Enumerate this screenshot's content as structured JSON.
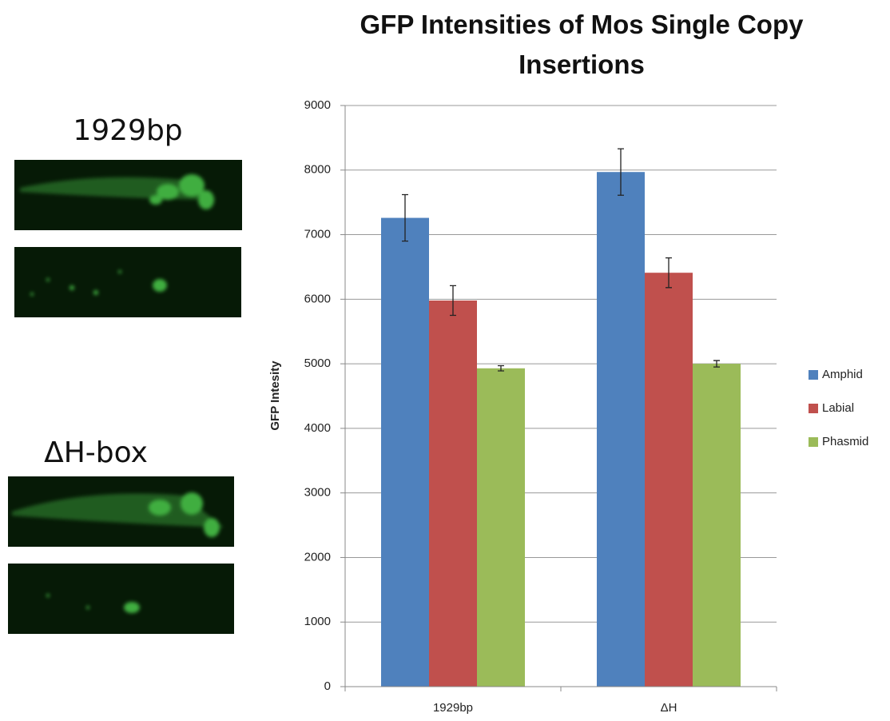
{
  "panels": [
    {
      "label": "1929bp"
    },
    {
      "label": "ΔH-box"
    }
  ],
  "chart_data": {
    "type": "bar",
    "title": "GFP Intensities of Mos Single Copy Insertions",
    "y_label": "GFP Intesity",
    "categories": [
      "1929bp",
      "ΔH"
    ],
    "series": [
      {
        "name": "Amphid",
        "color": "#4f81bd",
        "values": [
          7260,
          7970
        ],
        "errors": [
          360,
          360
        ]
      },
      {
        "name": "Labial",
        "color": "#c0504d",
        "values": [
          5980,
          6410
        ],
        "errors": [
          230,
          230
        ]
      },
      {
        "name": "Phasmid",
        "color": "#9bbb59",
        "values": [
          4930,
          5000
        ],
        "errors": [
          40,
          50
        ]
      }
    ],
    "ylim": [
      0,
      9000
    ],
    "yticks": [
      0,
      1000,
      2000,
      3000,
      4000,
      5000,
      6000,
      7000,
      8000,
      9000
    ],
    "grid": true,
    "legend": "right"
  }
}
